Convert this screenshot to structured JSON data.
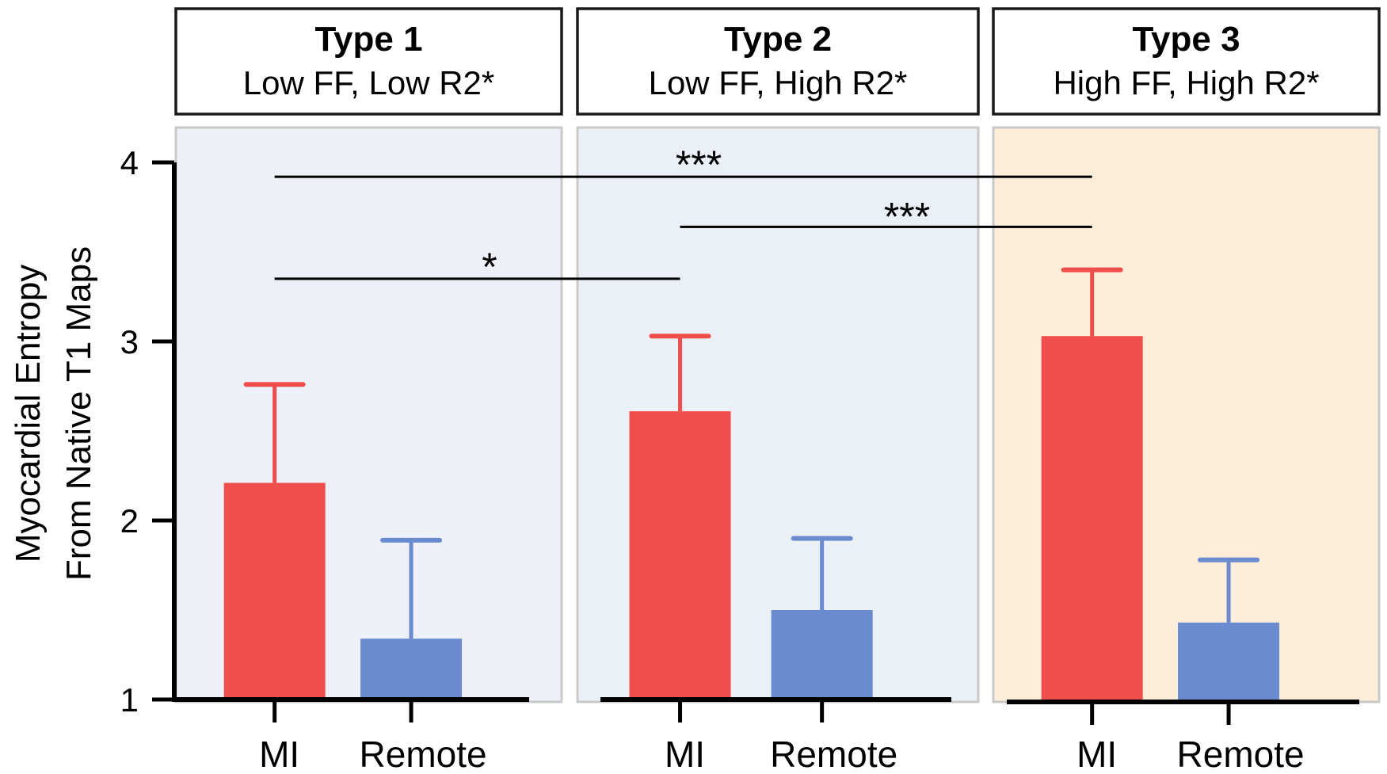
{
  "chart_data": {
    "type": "bar",
    "ylabel_lines": [
      "Myocardial Entropy",
      "From Native T1 Maps"
    ],
    "ylim": [
      1,
      4
    ],
    "yticks": [
      1,
      2,
      3,
      4
    ],
    "categories": [
      "MI",
      "Remote"
    ],
    "panels": [
      {
        "title": "Type 1",
        "subtitle": "Low FF, Low R2*",
        "background": "#eef0f7",
        "bars": [
          {
            "category": "MI",
            "value": 2.21,
            "error": 2.76,
            "color": "#f04d4d"
          },
          {
            "category": "Remote",
            "value": 1.34,
            "error": 1.89,
            "color": "#6a8bd0"
          }
        ]
      },
      {
        "title": "Type 2",
        "subtitle": "Low FF, High R2*",
        "background": "#ebf0f7",
        "bars": [
          {
            "category": "MI",
            "value": 2.61,
            "error": 3.03,
            "color": "#f04d4d"
          },
          {
            "category": "Remote",
            "value": 1.5,
            "error": 1.9,
            "color": "#6a8bd0"
          }
        ]
      },
      {
        "title": "Type 3",
        "subtitle": "High FF, High R2*",
        "background": "#fdedd9",
        "bars": [
          {
            "category": "MI",
            "value": 3.03,
            "error": 3.4,
            "color": "#f04d4d"
          },
          {
            "category": "Remote",
            "value": 1.43,
            "error": 1.78,
            "color": "#6a8bd0"
          }
        ]
      }
    ],
    "significance": [
      {
        "from_panel": 0,
        "to_panel": 2,
        "y": 3.92,
        "label": "***"
      },
      {
        "from_panel": 1,
        "to_panel": 2,
        "y": 3.64,
        "label": "***"
      },
      {
        "from_panel": 0,
        "to_panel": 1,
        "y": 3.35,
        "label": "*"
      }
    ]
  }
}
